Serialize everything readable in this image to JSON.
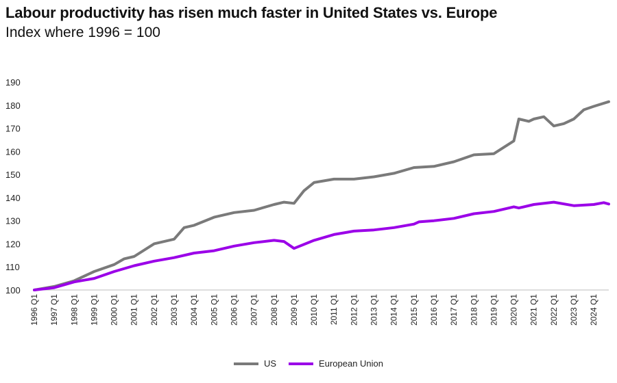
{
  "chart_data": {
    "type": "line",
    "title": "Labour productivity has risen much faster in United States vs. Europe",
    "subtitle": "Index where 1996 = 100",
    "xlabel": "",
    "ylabel": "",
    "ylim": [
      100,
      190
    ],
    "yticks": [
      "100",
      "110",
      "120",
      "130",
      "140",
      "150",
      "160",
      "170",
      "180",
      "190"
    ],
    "xticks": [
      "1996 Q1",
      "1997 Q1",
      "1998 Q1",
      "1999 Q1",
      "2000 Q1",
      "2001 Q1",
      "2002 Q1",
      "2003 Q1",
      "2004 Q1",
      "2005 Q1",
      "2006 Q1",
      "2007 Q1",
      "2008 Q1",
      "2009 Q1",
      "2010 Q1",
      "2011 Q1",
      "2012 Q1",
      "2013 Q1",
      "2014 Q1",
      "2015 Q1",
      "2016 Q1",
      "2017 Q1",
      "2018 Q1",
      "2019 Q1",
      "2020 Q1",
      "2021 Q1",
      "2022 Q1",
      "2023 Q1",
      "2024 Q1"
    ],
    "grid": false,
    "legend_position": "bottom-center",
    "series": [
      {
        "name": "US",
        "color": "#7a7a7a",
        "points": [
          [
            "1996 Q1",
            100
          ],
          [
            "1997 Q1",
            101.5
          ],
          [
            "1998 Q1",
            104
          ],
          [
            "1999 Q1",
            108
          ],
          [
            "2000 Q1",
            111
          ],
          [
            "2000 Q3",
            113.5
          ],
          [
            "2001 Q1",
            114.5
          ],
          [
            "2002 Q1",
            120
          ],
          [
            "2003 Q1",
            122
          ],
          [
            "2003 Q3",
            127
          ],
          [
            "2004 Q1",
            128
          ],
          [
            "2005 Q1",
            131.5
          ],
          [
            "2006 Q1",
            133.5
          ],
          [
            "2007 Q1",
            134.5
          ],
          [
            "2008 Q1",
            137
          ],
          [
            "2008 Q3",
            138
          ],
          [
            "2009 Q1",
            137.5
          ],
          [
            "2009 Q3",
            143
          ],
          [
            "2010 Q1",
            146.5
          ],
          [
            "2011 Q1",
            148
          ],
          [
            "2012 Q1",
            148
          ],
          [
            "2013 Q1",
            149
          ],
          [
            "2014 Q1",
            150.5
          ],
          [
            "2015 Q1",
            153
          ],
          [
            "2016 Q1",
            153.5
          ],
          [
            "2017 Q1",
            155.5
          ],
          [
            "2018 Q1",
            158.5
          ],
          [
            "2019 Q1",
            159
          ],
          [
            "2020 Q1",
            164.5
          ],
          [
            "2020 Q2",
            174
          ],
          [
            "2020 Q4",
            173
          ],
          [
            "2021 Q1",
            174
          ],
          [
            "2021 Q3",
            175
          ],
          [
            "2022 Q1",
            171
          ],
          [
            "2022 Q3",
            172
          ],
          [
            "2023 Q1",
            174
          ],
          [
            "2023 Q3",
            178
          ],
          [
            "2024 Q1",
            179.5
          ],
          [
            "2024 Q4",
            181.5
          ]
        ]
      },
      {
        "name": "European Union",
        "color": "#9b00e8",
        "points": [
          [
            "1996 Q1",
            100
          ],
          [
            "1997 Q1",
            101
          ],
          [
            "1998 Q1",
            103.5
          ],
          [
            "1999 Q1",
            105
          ],
          [
            "2000 Q1",
            108
          ],
          [
            "2001 Q1",
            110.5
          ],
          [
            "2002 Q1",
            112.5
          ],
          [
            "2003 Q1",
            114
          ],
          [
            "2004 Q1",
            116
          ],
          [
            "2005 Q1",
            117
          ],
          [
            "2006 Q1",
            119
          ],
          [
            "2007 Q1",
            120.5
          ],
          [
            "2008 Q1",
            121.5
          ],
          [
            "2008 Q3",
            121
          ],
          [
            "2009 Q1",
            118
          ],
          [
            "2010 Q1",
            121.5
          ],
          [
            "2011 Q1",
            124
          ],
          [
            "2012 Q1",
            125.5
          ],
          [
            "2013 Q1",
            126
          ],
          [
            "2014 Q1",
            127
          ],
          [
            "2015 Q1",
            128.5
          ],
          [
            "2015 Q2",
            129.5
          ],
          [
            "2016 Q1",
            130
          ],
          [
            "2017 Q1",
            131
          ],
          [
            "2018 Q1",
            133
          ],
          [
            "2019 Q1",
            134
          ],
          [
            "2020 Q1",
            136
          ],
          [
            "2020 Q2",
            135.5
          ],
          [
            "2021 Q1",
            137
          ],
          [
            "2022 Q1",
            138
          ],
          [
            "2023 Q1",
            136.5
          ],
          [
            "2024 Q1",
            137
          ],
          [
            "2024 Q3",
            137.8
          ],
          [
            "2024 Q4",
            137.2
          ]
        ]
      }
    ]
  }
}
